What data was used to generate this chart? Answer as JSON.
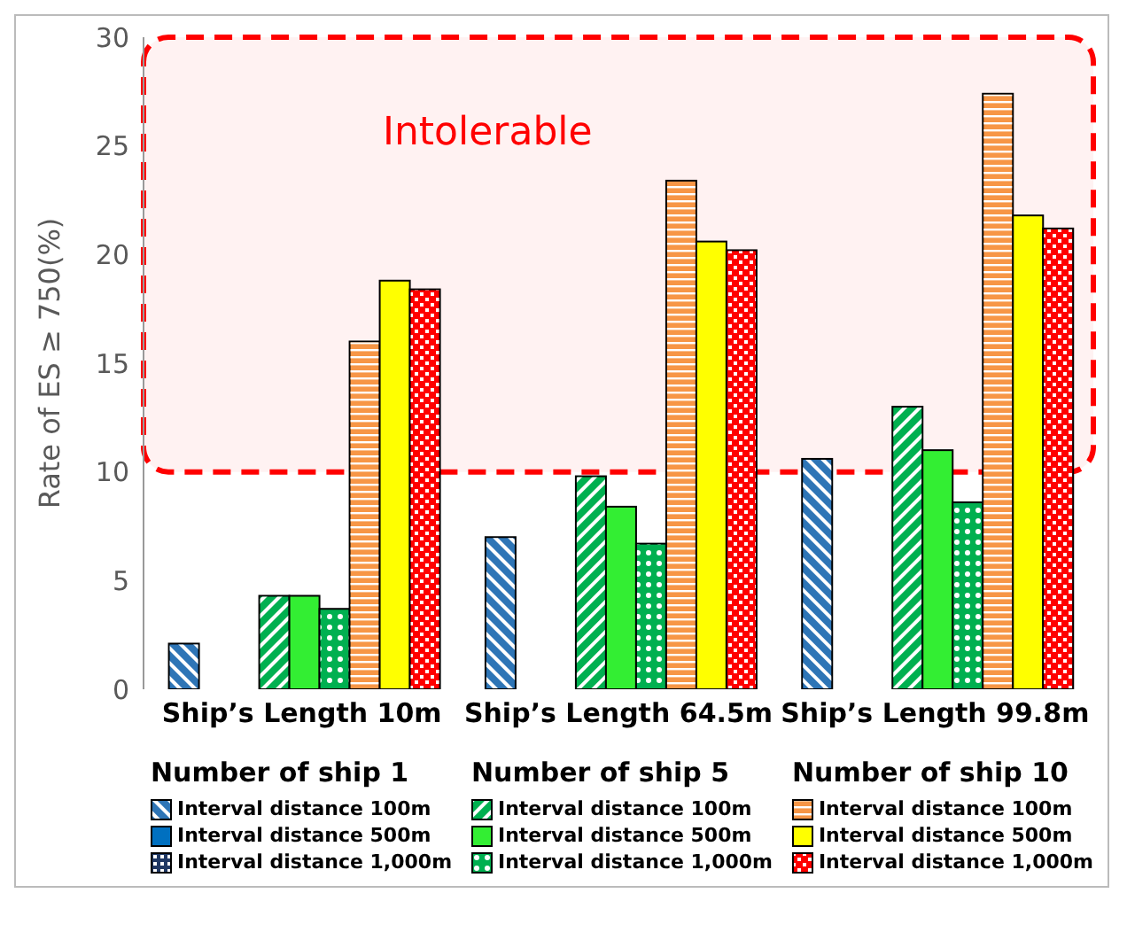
{
  "chart_data": {
    "type": "bar",
    "ylabel": "Rate of ES ≥ 750(%)",
    "categories": [
      "Ship’s Length 10m",
      "Ship’s Length 64.5m",
      "Ship’s Length 99.8m"
    ],
    "series": [
      {
        "name": "Interval distance 100m",
        "color": "#2e75b6",
        "values": [
          2.1,
          7.0,
          10.6
        ]
      },
      {
        "name": "Interval distance 500m",
        "color": "#0070c0",
        "values": [
          0,
          0,
          0
        ]
      },
      {
        "name": "Interval distance 1,000m",
        "color": "#203864",
        "values": [
          0,
          0,
          0
        ]
      },
      {
        "name": "Interval distance 100m",
        "color": "#00b050",
        "values": [
          4.3,
          9.8,
          13.0
        ]
      },
      {
        "name": "Interval distance 500m",
        "color": "#33ee33",
        "values": [
          4.3,
          8.4,
          11.0
        ]
      },
      {
        "name": "Interval distance 1,000m",
        "color": "#00b050",
        "values": [
          3.7,
          6.7,
          8.6
        ]
      },
      {
        "name": "Interval distance 100m",
        "color": "#f79646",
        "values": [
          16.0,
          23.4,
          27.4
        ]
      },
      {
        "name": "Interval distance 500m",
        "color": "#ffff00",
        "values": [
          18.8,
          20.6,
          21.8
        ]
      },
      {
        "name": "Interval distance 1,000m",
        "color": "#ff0000",
        "values": [
          18.4,
          20.2,
          21.2
        ]
      }
    ],
    "ylim": [
      0,
      30
    ],
    "yticks": [
      0,
      5,
      10,
      15,
      20,
      25,
      30
    ],
    "grid": false,
    "legend": "bottom",
    "bands": [
      {
        "axis": "y",
        "from": 10,
        "to": 30,
        "label": "Intolerable",
        "color": "#ff0000"
      }
    ],
    "annotations": [
      "Number of ship 1",
      "Number of ship 5",
      "Number of ship 10"
    ]
  }
}
